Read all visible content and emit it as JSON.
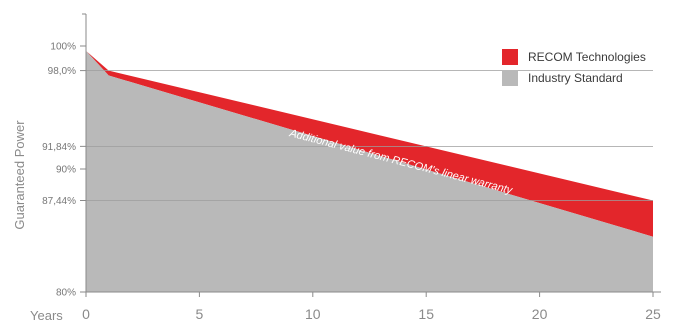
{
  "chart_data": {
    "type": "area",
    "x_label": "Years",
    "y_label": "Guaranteed Power",
    "xlim": [
      0,
      25
    ],
    "ylim": [
      80,
      100
    ],
    "x_ticks": [
      0,
      5,
      10,
      15,
      20,
      25
    ],
    "y_ticks": [
      {
        "value": 100,
        "label": "100%",
        "color": "#777777"
      },
      {
        "value": 98.0,
        "label": "98,0%",
        "color": "#e3262b"
      },
      {
        "value": 91.84,
        "label": "91,84%",
        "color": "#e3262b"
      },
      {
        "value": 90,
        "label": "90%",
        "color": "#777777"
      },
      {
        "value": 87.44,
        "label": "87,44%",
        "color": "#e3262b"
      },
      {
        "value": 80,
        "label": "80%",
        "color": "#777777"
      }
    ],
    "gridlines": [
      98.0,
      91.84,
      87.44
    ],
    "legend_position": "top-right",
    "series": [
      {
        "name": "RECOM Technologies",
        "color": "#e3262b",
        "x": [
          0,
          1,
          25
        ],
        "y": [
          99.6,
          98.0,
          87.44
        ]
      },
      {
        "name": "Industry Standard",
        "color": "#b9b9b9",
        "x": [
          0,
          1,
          25
        ],
        "y": [
          99.6,
          97.6,
          84.5
        ]
      }
    ],
    "annotation": "Additional value from RECOM's linear warranty"
  }
}
